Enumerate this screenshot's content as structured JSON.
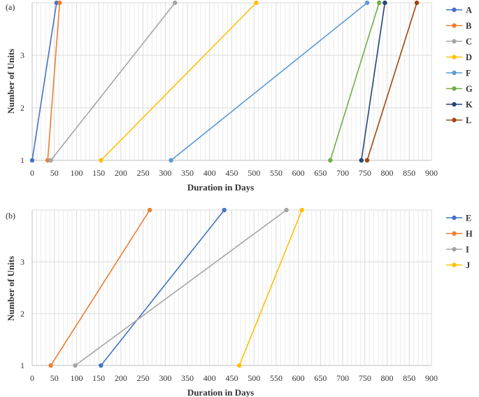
{
  "chart_data": [
    {
      "type": "line",
      "panel_label": "(a)",
      "xlabel": "Duration in Days",
      "ylabel": "Number of Units",
      "xlim": [
        0,
        900
      ],
      "ylim": [
        1,
        4
      ],
      "x_tick_labels": [
        "0",
        "50",
        "100",
        "150",
        "200",
        "250",
        "300",
        "350",
        "400",
        "450",
        "500",
        "550",
        "600",
        "650",
        "700",
        "750",
        "800",
        "850",
        "900"
      ],
      "y_tick_labels": [
        "1",
        "2",
        "3"
      ],
      "grid": true,
      "minor_x_grid_step": 10,
      "legend_position": "right",
      "series": [
        {
          "name": "A",
          "color": "#4472C4",
          "points": [
            [
              0,
              1
            ],
            [
              55,
              4
            ]
          ]
        },
        {
          "name": "B",
          "color": "#ED7D31",
          "points": [
            [
              35,
              1
            ],
            [
              62,
              4
            ]
          ]
        },
        {
          "name": "C",
          "color": "#A5A5A5",
          "points": [
            [
              42,
              1
            ],
            [
              322,
              4
            ]
          ]
        },
        {
          "name": "D",
          "color": "#FFC000",
          "points": [
            [
              155,
              1
            ],
            [
              505,
              4
            ]
          ]
        },
        {
          "name": "F",
          "color": "#5B9BD5",
          "points": [
            [
              313,
              1
            ],
            [
              755,
              4
            ]
          ]
        },
        {
          "name": "G",
          "color": "#70AD47",
          "points": [
            [
              672,
              1
            ],
            [
              782,
              4
            ]
          ]
        },
        {
          "name": "K",
          "color": "#264478",
          "points": [
            [
              742,
              1
            ],
            [
              795,
              4
            ]
          ]
        },
        {
          "name": "L",
          "color": "#9E480E",
          "points": [
            [
              755,
              1
            ],
            [
              867,
              4
            ]
          ]
        }
      ]
    },
    {
      "type": "line",
      "panel_label": "(b)",
      "xlabel": "Duration in Days",
      "ylabel": "Number of Units",
      "xlim": [
        0,
        900
      ],
      "ylim": [
        1,
        4
      ],
      "x_tick_labels": [
        "0",
        "50",
        "100",
        "150",
        "200",
        "250",
        "300",
        "350",
        "400",
        "450",
        "500",
        "550",
        "600",
        "650",
        "700",
        "750",
        "800",
        "850",
        "900"
      ],
      "y_tick_labels": [
        "1",
        "2",
        "3"
      ],
      "grid": true,
      "minor_x_grid_step": 10,
      "legend_position": "right",
      "series": [
        {
          "name": "E",
          "color": "#4472C4",
          "points": [
            [
              155,
              1
            ],
            [
              433,
              4
            ]
          ]
        },
        {
          "name": "H",
          "color": "#ED7D31",
          "points": [
            [
              42,
              1
            ],
            [
              265,
              4
            ]
          ]
        },
        {
          "name": "I",
          "color": "#A5A5A5",
          "points": [
            [
              97,
              1
            ],
            [
              573,
              4
            ]
          ]
        },
        {
          "name": "J",
          "color": "#FFC000",
          "points": [
            [
              467,
              1
            ],
            [
              608,
              4
            ]
          ]
        }
      ]
    }
  ]
}
